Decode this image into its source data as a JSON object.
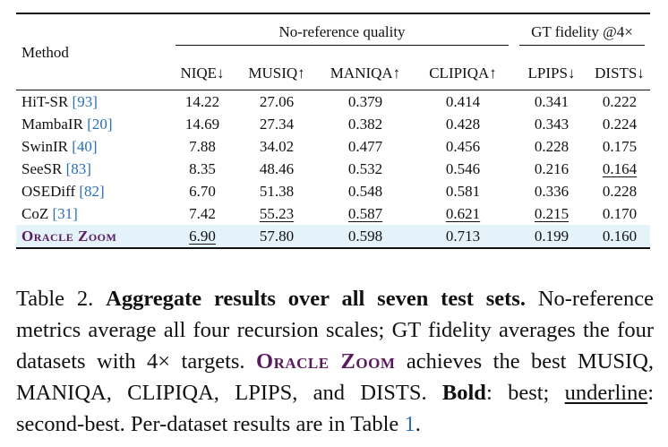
{
  "table": {
    "method_header": "Method",
    "group_noref": "No-reference quality",
    "group_gt": "GT fidelity @4×",
    "columns": [
      "NIQE↓",
      "MUSIQ↑",
      "MANIQA↑",
      "CLIPIQA↑",
      "LPIPS↓",
      "DISTS↓"
    ],
    "rows": [
      {
        "name": "HiT-SR",
        "cite": "[93]",
        "values": [
          "14.22",
          "27.06",
          "0.379",
          "0.414",
          "0.341",
          "0.222"
        ]
      },
      {
        "name": "MambaIR",
        "cite": "[20]",
        "values": [
          "14.69",
          "27.34",
          "0.382",
          "0.428",
          "0.343",
          "0.224"
        ]
      },
      {
        "name": "SwinIR",
        "cite": "[40]",
        "values": [
          "7.88",
          "34.02",
          "0.477",
          "0.456",
          "0.228",
          "0.175"
        ]
      },
      {
        "name": "SeeSR",
        "cite": "[83]",
        "values": [
          "8.35",
          "48.46",
          "0.532",
          "0.546",
          "0.216",
          "0.164"
        ]
      },
      {
        "name": "OSEDiff",
        "cite": "[82]",
        "values": [
          "6.70",
          "51.38",
          "0.548",
          "0.581",
          "0.336",
          "0.228"
        ]
      },
      {
        "name": "CoZ",
        "cite": "[31]",
        "values": [
          "7.42",
          "55.23",
          "0.587",
          "0.621",
          "0.215",
          "0.170"
        ]
      },
      {
        "name": "Oracle Zoom",
        "cite": "",
        "values": [
          "6.90",
          "57.80",
          "0.598",
          "0.713",
          "0.199",
          "0.160"
        ]
      }
    ]
  },
  "caption": {
    "lead": "Table 2.",
    "bold_title": "Aggregate results over all seven test sets.",
    "part1": "No-reference metrics average all four recursion scales; GT fidelity averages the four datasets with 4× targets.",
    "method": "Oracle Zoom",
    "part2": "achieves the best MUSIQ, MANIQA, CLIPIQA, LPIPS, and DISTS.",
    "bold_label": "Bold",
    "bold_desc": ": best;",
    "underline_label": "underline",
    "underline_desc": ": second-best. Per-dataset results are in Table",
    "table_ref": "1",
    "end": "."
  },
  "colors": {
    "highlight_row": "#e4f2fa",
    "method_name": "#5a1a5e",
    "citation": "#2a6fb5"
  }
}
